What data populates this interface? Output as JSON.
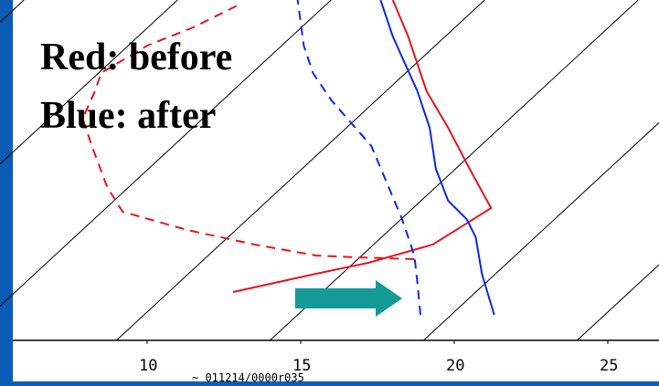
{
  "chart_data": {
    "type": "line",
    "title": "",
    "xlabel": "",
    "ylabel": "",
    "x_ticks": [
      10,
      15,
      20,
      25
    ],
    "xlim": [
      7.8,
      28.2
    ],
    "grid": true,
    "legend": [
      "Red:  before",
      "Blue: after"
    ],
    "footer_text": "~ 011214/0000r035",
    "arrow_color": "#139a96",
    "series": [
      {
        "color": "#e8141e",
        "style": "solid",
        "points": [
          [
            12.8,
            320
          ],
          [
            15.5,
            300
          ],
          [
            17.2,
            288
          ],
          [
            19.3,
            268
          ],
          [
            21.2,
            228
          ],
          [
            20.5,
            185
          ],
          [
            19.8,
            140
          ],
          [
            19.1,
            100
          ],
          [
            18.5,
            40
          ],
          [
            18.0,
            0
          ]
        ]
      },
      {
        "color": "#e8141e",
        "style": "dashed",
        "points": [
          [
            18.7,
            284
          ],
          [
            16.8,
            282
          ],
          [
            15.5,
            280
          ],
          [
            13.5,
            268
          ],
          [
            11.3,
            252
          ],
          [
            9.2,
            232
          ],
          [
            8.7,
            205
          ],
          [
            8.2,
            160
          ],
          [
            7.9,
            130
          ],
          [
            8.3,
            100
          ],
          [
            8.5,
            80
          ],
          [
            10.0,
            50
          ],
          [
            11.5,
            30
          ],
          [
            13.0,
            5
          ]
        ]
      },
      {
        "color": "#0b28ee",
        "style": "solid",
        "points": [
          [
            21.3,
            345
          ],
          [
            20.9,
            300
          ],
          [
            20.7,
            260
          ],
          [
            20.4,
            240
          ],
          [
            19.8,
            220
          ],
          [
            19.4,
            185
          ],
          [
            19.2,
            140
          ],
          [
            18.8,
            100
          ],
          [
            18.0,
            40
          ],
          [
            17.6,
            0
          ]
        ]
      },
      {
        "color": "#0b28ee",
        "style": "dashed",
        "points": [
          [
            18.9,
            345
          ],
          [
            18.8,
            310
          ],
          [
            18.7,
            280
          ],
          [
            18.3,
            240
          ],
          [
            17.3,
            160
          ],
          [
            16.0,
            110
          ],
          [
            15.4,
            80
          ],
          [
            15.1,
            50
          ],
          [
            14.9,
            0
          ]
        ]
      }
    ]
  }
}
